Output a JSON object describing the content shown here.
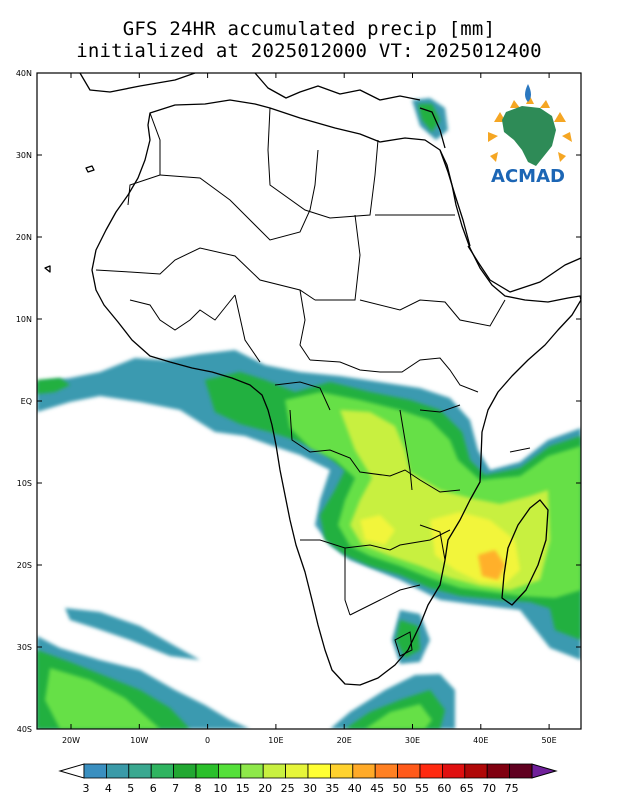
{
  "title": {
    "line1": "GFS 24HR accumulated precip [mm]",
    "line2": "initialized at 2025012000 VT: 2025012400"
  },
  "logo": {
    "text": "ACMAD"
  },
  "axes": {
    "lat_labels": [
      "40N",
      "30N",
      "20N",
      "10N",
      "EQ",
      "10S",
      "20S",
      "30S",
      "40S"
    ],
    "lon_labels": [
      "20W",
      "10W",
      "0",
      "10E",
      "20E",
      "30E",
      "40E",
      "50E"
    ]
  },
  "colorbar": {
    "labels": [
      "3",
      "4",
      "5",
      "6",
      "7",
      "8",
      "10",
      "15",
      "20",
      "25",
      "30",
      "35",
      "40",
      "45",
      "50",
      "55",
      "60",
      "65",
      "70",
      "75"
    ],
    "colors": [
      "#3a8fc0",
      "#3a9aa8",
      "#3aa890",
      "#2fb460",
      "#22a832",
      "#2bc02b",
      "#55e03a",
      "#8ee84a",
      "#c8f040",
      "#e6f53a",
      "#ffff33",
      "#ffd22e",
      "#ffaa28",
      "#ff8022",
      "#ff5a1a",
      "#ff2a10",
      "#e01010",
      "#b00808",
      "#800010",
      "#600020"
    ],
    "under_color": "#ffffff",
    "over_color": "#70209a"
  },
  "colors": {
    "coast": "#000000",
    "border": "#000000"
  }
}
